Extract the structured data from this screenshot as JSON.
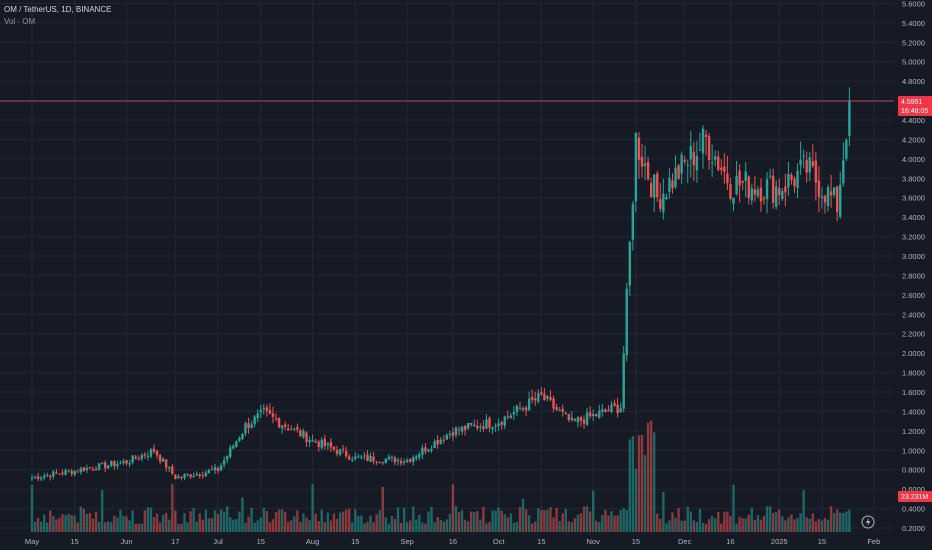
{
  "header": {
    "symbol_line": "OM / TetherUS, 1D, BINANCE",
    "volume_line": "Vol · OM"
  },
  "colors": {
    "background": "#161a25",
    "grid": "#232734",
    "up": "#26a69a",
    "down": "#ef5350",
    "price_line": "#e0525e",
    "axis_text": "#b2b5be"
  },
  "price_badge": {
    "price": "4.5951",
    "countdown": "16:48:05",
    "color": "#f23645"
  },
  "volume_badge": {
    "value": "23.231M",
    "color": "#f23645"
  },
  "icons": {
    "alert": "lightning-icon"
  },
  "chart_data": {
    "type": "candlestick",
    "symbol": "OM/USDT",
    "interval": "1D",
    "exchange": "BINANCE",
    "price_axis": {
      "ticks": [
        "5.6000",
        "5.4000",
        "5.2000",
        "5.0000",
        "4.8000",
        "4.4000",
        "4.2000",
        "4.0000",
        "3.8000",
        "3.6000",
        "3.4000",
        "3.2000",
        "3.0000",
        "2.8000",
        "2.6000",
        "2.4000",
        "2.2000",
        "2.0000",
        "1.8000",
        "1.6000",
        "1.4000",
        "1.2000",
        "1.0000",
        "0.8000",
        "0.6000",
        "0.4000",
        "0.2000"
      ],
      "range": [
        0.15,
        5.65
      ]
    },
    "time_axis": {
      "labels": [
        "May",
        "15",
        "Jun",
        "17",
        "Jul",
        "15",
        "Aug",
        "15",
        "Sep",
        "16",
        "Oct",
        "15",
        "Nov",
        "15",
        "Dec",
        "16",
        "2025",
        "15",
        "Feb"
      ]
    },
    "last_price": 4.5951,
    "series": [
      {
        "name": "Price",
        "key_points": [
          {
            "date": "2024-05-01",
            "close": 0.72
          },
          {
            "date": "2024-06-01",
            "close": 0.88
          },
          {
            "date": "2024-06-10",
            "close": 1.0
          },
          {
            "date": "2024-06-17",
            "close": 0.72
          },
          {
            "date": "2024-07-01",
            "close": 0.8
          },
          {
            "date": "2024-07-10",
            "close": 1.25
          },
          {
            "date": "2024-07-16",
            "close": 1.38
          },
          {
            "date": "2024-08-01",
            "close": 1.1
          },
          {
            "date": "2024-08-15",
            "close": 0.92
          },
          {
            "date": "2024-09-01",
            "close": 0.9
          },
          {
            "date": "2024-09-16",
            "close": 1.2
          },
          {
            "date": "2024-10-01",
            "close": 1.3
          },
          {
            "date": "2024-10-15",
            "close": 1.55
          },
          {
            "date": "2024-10-25",
            "close": 1.28
          },
          {
            "date": "2024-11-10",
            "close": 1.45
          },
          {
            "date": "2024-11-15",
            "close": 4.2
          },
          {
            "date": "2024-11-22",
            "close": 3.6
          },
          {
            "date": "2024-12-08",
            "close": 4.2
          },
          {
            "date": "2024-12-16",
            "close": 3.75
          },
          {
            "date": "2025-01-01",
            "close": 3.7
          },
          {
            "date": "2025-01-10",
            "close": 3.9
          },
          {
            "date": "2025-01-20",
            "close": 3.52
          },
          {
            "date": "2025-01-22",
            "close": 4.05
          },
          {
            "date": "2025-01-24",
            "close": 4.6
          }
        ]
      }
    ]
  }
}
